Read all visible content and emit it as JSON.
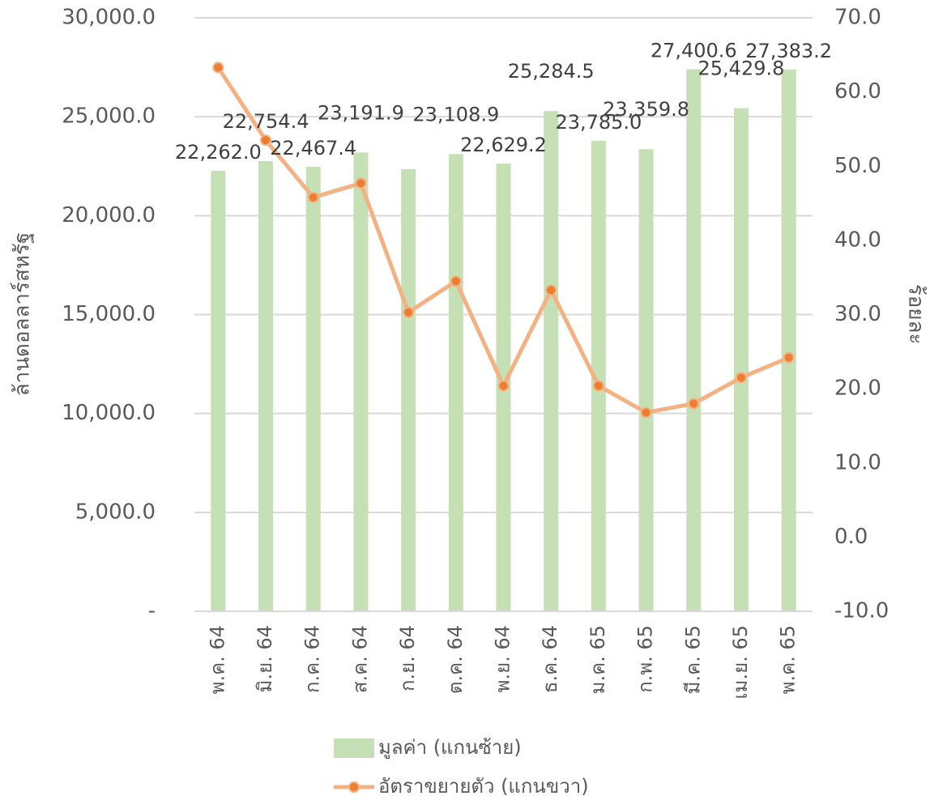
{
  "chart_data": {
    "type": "bar-line",
    "categories": [
      "พ.ค. 64",
      "มิ.ย. 64",
      "ก.ค. 64",
      "ส.ค. 64",
      "ก.ย. 64",
      "ต.ค. 64",
      "พ.ย. 64",
      "ธ.ค. 64",
      "ม.ค. 65",
      "ก.พ. 65",
      "มี.ค. 65",
      "เม.ย. 65",
      "พ.ค. 65"
    ],
    "y_label": "ล้านดอลลาร์สหรัฐ",
    "y2_label": "ร้อยละ",
    "series": [
      {
        "name": "มูลค่า (แกนซ้าย)",
        "type": "bar",
        "color": "#c5e0b4",
        "values": [
          22262.0,
          22754.4,
          22467.4,
          23191.9,
          22350,
          23108.9,
          22629.2,
          25284.5,
          23785.0,
          23359.8,
          27400.6,
          25429.8,
          27383.2
        ],
        "value_labels": [
          "22,262.0",
          "22,754.4",
          "22,467.4",
          "23,191.9",
          null,
          "23,108.9",
          "22,629.2",
          "25,284.5",
          "23,785.0",
          "23,359.8",
          "27,400.6",
          "25,429.8",
          "27,383.2"
        ]
      },
      {
        "name": "อัตราขยายตัว (แกนขวา)",
        "type": "line",
        "axis": "y2",
        "color": "#f4b183",
        "marker_color": "#ed7d31",
        "values": [
          63.3,
          53.5,
          45.8,
          47.7,
          30.3,
          34.5,
          20.4,
          33.3,
          20.4,
          16.8,
          18.0,
          21.5,
          24.2
        ]
      }
    ],
    "ylim": [
      0,
      30000
    ],
    "yticks": [
      {
        "value": 0,
        "label": "-"
      },
      {
        "value": 5000,
        "label": "5,000.0"
      },
      {
        "value": 10000,
        "label": "10,000.0"
      },
      {
        "value": 15000,
        "label": "15,000.0"
      },
      {
        "value": 20000,
        "label": "20,000.0"
      },
      {
        "value": 25000,
        "label": "25,000.0"
      },
      {
        "value": 30000,
        "label": "30,000.0"
      }
    ],
    "y2lim": [
      -10,
      70
    ],
    "y2ticks": [
      {
        "value": -10,
        "label": "-10.0"
      },
      {
        "value": 0,
        "label": "0.0"
      },
      {
        "value": 10,
        "label": "10.0"
      },
      {
        "value": 20,
        "label": "20.0"
      },
      {
        "value": 30,
        "label": "30.0"
      },
      {
        "value": 40,
        "label": "40.0"
      },
      {
        "value": 50,
        "label": "50.0"
      },
      {
        "value": 60,
        "label": "60.0"
      },
      {
        "value": 70,
        "label": "70.0"
      }
    ],
    "grid": true,
    "legend": "bottom"
  }
}
